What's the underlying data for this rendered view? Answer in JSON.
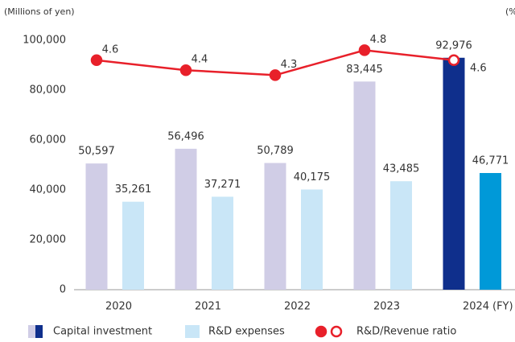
{
  "chart_data": {
    "type": "bar",
    "y_label": "(Millions of yen)",
    "y2_label": "(%",
    "x_label": "(FY)",
    "categories": [
      "2020",
      "2021",
      "2022",
      "2023",
      "2024"
    ],
    "series": [
      {
        "name": "Capital investment",
        "color": "#d0cde6",
        "colors": [
          "#d0cde6",
          "#d0cde6",
          "#d0cde6",
          "#d0cde6",
          "#0f2f8c"
        ],
        "values": [
          50597,
          56496,
          50789,
          83445,
          92976
        ],
        "value_labels": [
          "50,597",
          "56,496",
          "50,789",
          "83,445",
          "92,976"
        ]
      },
      {
        "name": "R&D expenses",
        "color": "#c9e6f7",
        "colors": [
          "#c9e6f7",
          "#c9e6f7",
          "#c9e6f7",
          "#c9e6f7",
          "#0099d8"
        ],
        "values": [
          35261,
          37271,
          40175,
          43485,
          46771
        ],
        "value_labels": [
          "35,261",
          "37,271",
          "40,175",
          "43,485",
          "46,771"
        ]
      },
      {
        "name": "R&D/Revenue ratio",
        "type": "line",
        "axis": "y2",
        "color": "#e8202a",
        "marker_fills": [
          "#e8202a",
          "#e8202a",
          "#e8202a",
          "#e8202a",
          "#ffffff"
        ],
        "values": [
          4.6,
          4.4,
          4.3,
          4.8,
          4.6
        ]
      }
    ],
    "ylim": [
      0,
      100000
    ],
    "yticks": [
      0,
      {
        "value": 20000,
        "label": "20,000"
      },
      {
        "value": 40000,
        "label": "40,000"
      },
      {
        "value": 60000,
        "label": "60,000"
      },
      {
        "value": 80000,
        "label": "80,000"
      },
      {
        "value": 100000,
        "label": "100,000"
      }
    ],
    "y2lim": [
      0,
      5
    ],
    "grid": false
  }
}
